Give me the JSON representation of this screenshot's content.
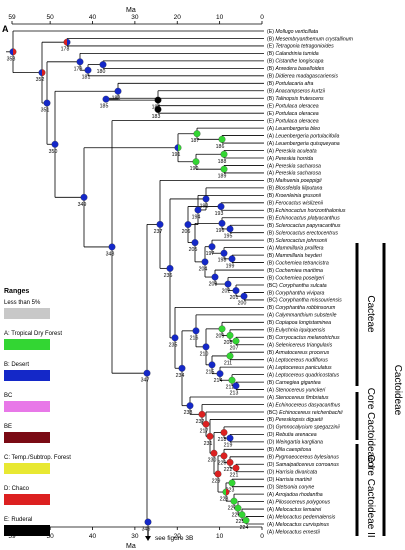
{
  "panel_label": "A",
  "axis": {
    "title_top": "Ma",
    "title_bottom": "Ma",
    "ticks": [
      59,
      50,
      40,
      30,
      20,
      10,
      0
    ]
  },
  "legend": {
    "title": "Ranges",
    "items": [
      {
        "label": "Less than 5%",
        "color": "#c8c8c8"
      },
      {
        "label": "A: Tropical Dry Forest",
        "color": "#33d633"
      },
      {
        "label": "B: Desert",
        "color": "#1428c8"
      },
      {
        "label": "BC",
        "color": "#e878e8"
      },
      {
        "label": "BE",
        "color": "#7a0a14"
      },
      {
        "label": "C: Temp./Subtrop. Forest",
        "color": "#e8e832"
      },
      {
        "label": "D: Chaco",
        "color": "#dc2020"
      },
      {
        "label": "E: Ruderal",
        "color": "#000000"
      }
    ]
  },
  "clades": {
    "cacteae": "Cacteae",
    "cactoideae": "Cactoideae",
    "core1": "Core Cactoideae I",
    "core2": "Core Cactoideae II"
  },
  "note": "see figure 3B",
  "taxa": [
    {
      "region": "(E)",
      "name": "Mollugo verticillata"
    },
    {
      "region": "(B)",
      "name": "Mesembryanthemum crystallinum"
    },
    {
      "region": "(E)",
      "name": "Tetragonia tetragonioides"
    },
    {
      "region": "(B)",
      "name": "Calandrinia tumida"
    },
    {
      "region": "(B)",
      "name": "Cistanthe longiscapa"
    },
    {
      "region": "(B)",
      "name": "Anredera baselloides"
    },
    {
      "region": "(B)",
      "name": "Didierea madagascariensis"
    },
    {
      "region": "(B)",
      "name": "Portulacaria afra"
    },
    {
      "region": "(B)",
      "name": "Anacampseros kurtzii"
    },
    {
      "region": "(B)",
      "name": "Talinopsis frutescens"
    },
    {
      "region": "(E)",
      "name": "Portulaca oleracea"
    },
    {
      "region": "(E)",
      "name": "Portulaca oleracea"
    },
    {
      "region": "(E)",
      "name": "Portulaca oleracea"
    },
    {
      "region": "(A)",
      "name": "Leuenbergeria bleo"
    },
    {
      "region": "(A)",
      "name": "Leuenbergeria portulacifolia"
    },
    {
      "region": "(A)",
      "name": "Leuenbergeria quisqueyana"
    },
    {
      "region": "(A)",
      "name": "Pereskia aculeata"
    },
    {
      "region": "(A)",
      "name": "Pereskia horrida"
    },
    {
      "region": "(A)",
      "name": "Pereskia sacharosa"
    },
    {
      "region": "(A)",
      "name": "Pereskia sacharosa"
    },
    {
      "region": "(B)",
      "name": "Maihuenia poeppigii"
    },
    {
      "region": "(B)",
      "name": "Blossfeldia liliputana"
    },
    {
      "region": "(B)",
      "name": "Kroenleinia grusonii"
    },
    {
      "region": "(B)",
      "name": "Ferocactus wislizenii"
    },
    {
      "region": "(B)",
      "name": "Echinocactus horizonthalonius"
    },
    {
      "region": "(B)",
      "name": "Echinocactus platyacanthus"
    },
    {
      "region": "(B)",
      "name": "Sclerocactus papyracanthus"
    },
    {
      "region": "(B)",
      "name": "Sclerocactus erectocentrus"
    },
    {
      "region": "(B)",
      "name": "Sclerocactus johnsonii"
    },
    {
      "region": "(A)",
      "name": "Mammillaria prolifera"
    },
    {
      "region": "(B)",
      "name": "Mammillaria heyderi"
    },
    {
      "region": "(B)",
      "name": "Cochemiea tetrancistra"
    },
    {
      "region": "(B)",
      "name": "Cochemiea maritima"
    },
    {
      "region": "(B)",
      "name": "Cochemiea poselgeri"
    },
    {
      "region": "(BC)",
      "name": "Coryphantha sulcata"
    },
    {
      "region": "(B)",
      "name": "Coryphantha vivipara"
    },
    {
      "region": "(BC)",
      "name": "Coryphantha missouriensis"
    },
    {
      "region": "(B)",
      "name": "Coryphantha robbinsorum"
    },
    {
      "region": "(A)",
      "name": "Calymmanthium substerile"
    },
    {
      "region": "(B)",
      "name": "Copiapoa longistaminea"
    },
    {
      "region": "(B)",
      "name": "Eulychnia iquiquensis"
    },
    {
      "region": "(B)",
      "name": "Corryocactus melanotrichus"
    },
    {
      "region": "(A)",
      "name": "Selenicereus triangularis"
    },
    {
      "region": "(B)",
      "name": "Armatocereus procerus"
    },
    {
      "region": "(A)",
      "name": "Leptocereus nudiflorus"
    },
    {
      "region": "(A)",
      "name": "Leptocereus paniculatus"
    },
    {
      "region": "(A)",
      "name": "Leptocereus quadricostatus"
    },
    {
      "region": "(B)",
      "name": "Carnegiea gigantea"
    },
    {
      "region": "(A)",
      "name": "Stenocereus yunckeri"
    },
    {
      "region": "(A)",
      "name": "Stenocereus fimbriatus"
    },
    {
      "region": "(A)",
      "name": "Echinocereus dasyacanthus"
    },
    {
      "region": "(BC)",
      "name": "Echinocereus reichenbachii"
    },
    {
      "region": "(B)",
      "name": "Pereskiopsis diguetii"
    },
    {
      "region": "(D)",
      "name": "Gymnocalycium spegazzinii"
    },
    {
      "region": "(D)",
      "name": "Rebutia arenacea"
    },
    {
      "region": "(D)",
      "name": "Weingartia kargliana"
    },
    {
      "region": "(B)",
      "name": "Mila caespitosa"
    },
    {
      "region": "(B)",
      "name": "Pygmaeocereus bylesianus"
    },
    {
      "region": "(D)",
      "name": "Samaipaticereus corroanus"
    },
    {
      "region": "(D)",
      "name": "Harrisia divaricata"
    },
    {
      "region": "(D)",
      "name": "Harrisia martinii"
    },
    {
      "region": "(D)",
      "name": "Stetsonia coryne"
    },
    {
      "region": "(A)",
      "name": "Arrojadoa rhodantha"
    },
    {
      "region": "(A)",
      "name": "Pilosocereus polygonus"
    },
    {
      "region": "(A)",
      "name": "Melocactus lemairei"
    },
    {
      "region": "(A)",
      "name": "Melocactus pedernalensis"
    },
    {
      "region": "(A)",
      "name": "Melocactus curvispinus"
    },
    {
      "region": "(A)",
      "name": "Melocactus ernestii"
    }
  ],
  "nodes": [
    {
      "label": "353",
      "colors": [
        "#dc2020",
        "#1428c8"
      ]
    },
    {
      "label": "352",
      "colors": [
        "#dc2020",
        "#1428c8"
      ]
    },
    {
      "label": "178",
      "colors": [
        "#1428c8",
        "#dc2020"
      ]
    },
    {
      "label": "179",
      "colors": [
        "#1428c8"
      ]
    },
    {
      "label": "181",
      "colors": [
        "#1428c8"
      ]
    },
    {
      "label": "180",
      "colors": [
        "#1428c8"
      ]
    },
    {
      "label": "351",
      "colors": [
        "#1428c8"
      ]
    },
    {
      "label": "182",
      "colors": [
        "#1428c8"
      ]
    },
    {
      "label": "185",
      "colors": [
        "#1428c8"
      ]
    },
    {
      "label": "350",
      "colors": [
        "#1428c8"
      ]
    },
    {
      "label": "184",
      "colors": [
        "#000000"
      ]
    },
    {
      "label": "183",
      "colors": [
        "#000000"
      ]
    },
    {
      "label": "187",
      "colors": [
        "#33d633"
      ]
    },
    {
      "label": "186",
      "colors": [
        "#33d633"
      ]
    },
    {
      "label": "188",
      "colors": [
        "#33d633"
      ]
    },
    {
      "label": "191",
      "colors": [
        "#33d633",
        "#1428c8"
      ]
    },
    {
      "label": "190",
      "colors": [
        "#33d633"
      ]
    },
    {
      "label": "189",
      "colors": [
        "#33d633"
      ]
    },
    {
      "label": "349",
      "colors": [
        "#1428c8"
      ]
    },
    {
      "label": "348",
      "colors": [
        "#1428c8"
      ]
    },
    {
      "label": "192",
      "colors": [
        "#1428c8"
      ]
    },
    {
      "label": "194",
      "colors": [
        "#1428c8"
      ]
    },
    {
      "label": "193",
      "colors": [
        "#1428c8"
      ]
    },
    {
      "label": "206",
      "colors": [
        "#1428c8"
      ]
    },
    {
      "label": "196",
      "colors": [
        "#1428c8"
      ]
    },
    {
      "label": "195",
      "colors": [
        "#1428c8"
      ]
    },
    {
      "label": "205",
      "colors": [
        "#1428c8"
      ]
    },
    {
      "label": "197",
      "colors": [
        "#1428c8"
      ]
    },
    {
      "label": "204",
      "colors": [
        "#1428c8"
      ]
    },
    {
      "label": "198",
      "colors": [
        "#1428c8"
      ]
    },
    {
      "label": "199",
      "colors": [
        "#1428c8"
      ]
    },
    {
      "label": "203",
      "colors": [
        "#1428c8"
      ]
    },
    {
      "label": "202",
      "colors": [
        "#1428c8"
      ]
    },
    {
      "label": "201",
      "colors": [
        "#1428c8"
      ]
    },
    {
      "label": "200",
      "colors": [
        "#1428c8"
      ]
    },
    {
      "label": "237",
      "colors": [
        "#1428c8"
      ]
    },
    {
      "label": "347",
      "colors": [
        "#1428c8"
      ]
    },
    {
      "label": "236",
      "colors": [
        "#1428c8"
      ]
    },
    {
      "label": "235",
      "colors": [
        "#1428c8"
      ]
    },
    {
      "label": "216",
      "colors": [
        "#1428c8"
      ]
    },
    {
      "label": "234",
      "colors": [
        "#1428c8"
      ]
    },
    {
      "label": "210",
      "colors": [
        "#1428c8"
      ]
    },
    {
      "label": "209",
      "colors": [
        "#33d633"
      ]
    },
    {
      "label": "208",
      "colors": [
        "#33d633"
      ]
    },
    {
      "label": "207",
      "colors": [
        "#33d633"
      ]
    },
    {
      "label": "215",
      "colors": [
        "#1428c8"
      ]
    },
    {
      "label": "211",
      "colors": [
        "#33d633"
      ]
    },
    {
      "label": "214",
      "colors": [
        "#1428c8"
      ]
    },
    {
      "label": "212",
      "colors": [
        "#33d633"
      ]
    },
    {
      "label": "213",
      "colors": [
        "#1428c8"
      ]
    },
    {
      "label": "233",
      "colors": [
        "#1428c8"
      ]
    },
    {
      "label": "232",
      "colors": [
        "#dc2020"
      ]
    },
    {
      "label": "217",
      "colors": [
        "#dc2020"
      ]
    },
    {
      "label": "231",
      "colors": [
        "#dc2020"
      ]
    },
    {
      "label": "218",
      "colors": [
        "#dc2020"
      ]
    },
    {
      "label": "219",
      "colors": [
        "#1428c8"
      ]
    },
    {
      "label": "230",
      "colors": [
        "#dc2020"
      ]
    },
    {
      "label": "220",
      "colors": [
        "#dc2020"
      ]
    },
    {
      "label": "222",
      "colors": [
        "#dc2020"
      ]
    },
    {
      "label": "221",
      "colors": [
        "#dc2020"
      ]
    },
    {
      "label": "229",
      "colors": [
        "#dc2020"
      ]
    },
    {
      "label": "223",
      "colors": [
        "#33d633"
      ]
    },
    {
      "label": "228",
      "colors": [
        "#dc2020",
        "#33d633"
      ]
    },
    {
      "label": "227",
      "colors": [
        "#33d633"
      ]
    },
    {
      "label": "226",
      "colors": [
        "#33d633"
      ]
    },
    {
      "label": "225",
      "colors": [
        "#33d633"
      ]
    },
    {
      "label": "224",
      "colors": [
        "#33d633"
      ]
    },
    {
      "label": "346",
      "colors": [
        "#1428c8"
      ]
    }
  ]
}
